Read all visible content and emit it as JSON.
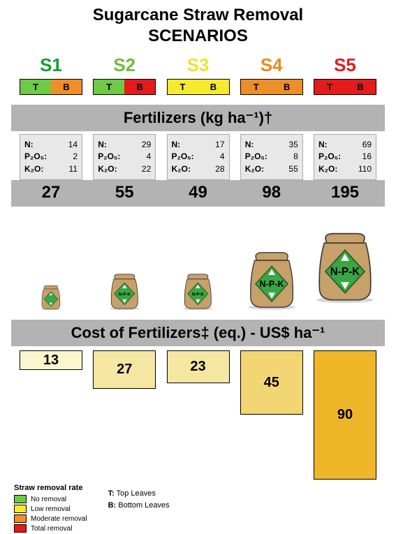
{
  "title_line1": "Sugarcane Straw Removal",
  "title_line2": "SCENARIOS",
  "scenario_label_colors": {
    "s1": "#1a9d2e",
    "s2": "#6abf3b",
    "s3": "#f3e135",
    "s4": "#e98a22",
    "s5": "#e31b1b"
  },
  "removal_colors": {
    "no": "#6ec945",
    "low": "#f6ea2e",
    "moderate": "#ed8e29",
    "total": "#e31b1b"
  },
  "tb": {
    "t_label": "T",
    "b_label": "B"
  },
  "scenarios": [
    {
      "name": "S1",
      "t_color_key": "no",
      "b_color_key": "moderate",
      "n": "14",
      "p": "2",
      "k": "11",
      "total": "27",
      "cost_value": "13",
      "cost_height": 28,
      "cost_fill": "#fcf6cf",
      "bag_scale": 0.3
    },
    {
      "name": "S2",
      "t_color_key": "no",
      "b_color_key": "total",
      "n": "29",
      "p": "4",
      "k": "22",
      "total": "55",
      "cost_value": "27",
      "cost_height": 55,
      "cost_fill": "#f5e6a2",
      "bag_scale": 0.44
    },
    {
      "name": "S3",
      "t_color_key": "low",
      "b_color_key": "low",
      "n": "17",
      "p": "4",
      "k": "28",
      "total": "49",
      "cost_value": "23",
      "cost_height": 47,
      "cost_fill": "#f5e6a2",
      "bag_scale": 0.44
    },
    {
      "name": "S4",
      "t_color_key": "moderate",
      "b_color_key": "moderate",
      "n": "35",
      "p": "8",
      "k": "55",
      "total": "98",
      "cost_value": "45",
      "cost_height": 92,
      "cost_fill": "#f2d673",
      "bag_scale": 0.7
    },
    {
      "name": "S5",
      "t_color_key": "total",
      "b_color_key": "total",
      "n": "69",
      "p": "16",
      "k": "110",
      "total": "195",
      "cost_value": "90",
      "cost_height": 185,
      "cost_fill": "#f0b62a",
      "bag_scale": 1.0
    }
  ],
  "fert_header": "Fertilizers (kg ha⁻¹)†",
  "fert_labels": {
    "n": "N:",
    "p": "P₂O₅:",
    "k": "K₂O:"
  },
  "cost_header": "Cost of Fertilizers‡ (eq.) - US$ ha⁻¹",
  "bag": {
    "full_width": 106,
    "full_height": 122,
    "body_fill": "#c7a06a",
    "body_stroke": "#3a3a3a",
    "diamond_fill": "#3aa644",
    "diamond_stroke": "#225a27",
    "triangles_fill": "#ffffff",
    "label": "N-P-K"
  },
  "legend": {
    "title": "Straw removal rate",
    "items": [
      {
        "key": "no",
        "label": "No removal"
      },
      {
        "key": "low",
        "label": "Low removal"
      },
      {
        "key": "moderate",
        "label": "Moderate removal"
      },
      {
        "key": "total",
        "label": "Total removal"
      }
    ],
    "t_desc": "T: Top Leaves",
    "b_desc": "B: Bottom Leaves"
  }
}
